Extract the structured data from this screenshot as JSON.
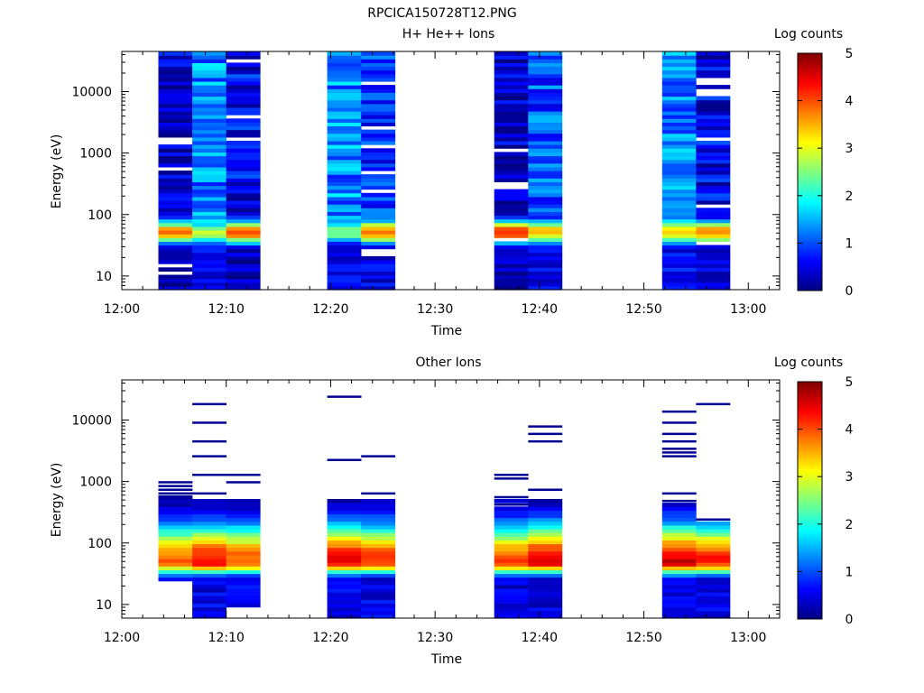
{
  "figure_title": "RPCICA150728T12.PNG",
  "chart_data": [
    {
      "type": "heatmap",
      "title": "H+ He++ Ions",
      "xlabel": "Time",
      "ylabel": "Energy (eV)",
      "x_range": [
        "12:00",
        "13:03"
      ],
      "x_ticks": [
        "12:00",
        "12:10",
        "12:20",
        "12:30",
        "12:40",
        "12:50",
        "13:00"
      ],
      "y_scale": "log",
      "y_range": [
        6,
        45000
      ],
      "y_ticks": [
        "10",
        "100",
        "1000",
        "10000"
      ],
      "colorbar": {
        "label": "Log counts",
        "range": [
          0,
          5
        ],
        "ticks": [
          "0",
          "1",
          "2",
          "3",
          "4",
          "5"
        ]
      },
      "columns": [
        {
          "start": "12:03:30",
          "end": "12:06:45",
          "band": [
            3.8,
            1.2
          ],
          "top_level": 0.35,
          "bottom_level": 0.2,
          "gaps": [
            1600,
            1450,
            520,
            14,
            11
          ],
          "seed": 11
        },
        {
          "start": "12:06:45",
          "end": "12:10:00",
          "band": [
            2.8,
            1.0
          ],
          "top_level": 1.3,
          "bottom_level": 0.5,
          "gaps": [],
          "seed": 12
        },
        {
          "start": "12:10:00",
          "end": "12:13:15",
          "band": [
            4.0,
            1.1
          ],
          "top_level": 0.6,
          "bottom_level": 0.3,
          "gaps": [
            30000,
            3800,
            1600
          ],
          "seed": 13
        },
        {
          "start": "12:19:40",
          "end": "12:22:55",
          "band": [
            2.5,
            1.3
          ],
          "top_level": 1.3,
          "bottom_level": 0.5,
          "gaps": [],
          "seed": 14
        },
        {
          "start": "12:22:55",
          "end": "12:26:10",
          "band": [
            4.0,
            1.0
          ],
          "top_level": 0.8,
          "bottom_level": 0.5,
          "gaps": [
            14000,
            2600,
            1350,
            500,
            230,
            27,
            23
          ],
          "seed": 15
        },
        {
          "start": "12:35:40",
          "end": "12:38:55",
          "band": [
            4.3,
            1.1
          ],
          "top_level": 0.3,
          "bottom_level": 0.2,
          "gaps": [
            1100,
            340,
            290,
            40
          ],
          "seed": 16
        },
        {
          "start": "12:38:55",
          "end": "12:42:10",
          "band": [
            3.5,
            1.0
          ],
          "top_level": 1.0,
          "bottom_level": 0.5,
          "gaps": [],
          "seed": 17
        },
        {
          "start": "12:51:45",
          "end": "12:55:00",
          "band": [
            3.5,
            1.2
          ],
          "top_level": 1.3,
          "bottom_level": 0.6,
          "gaps": [],
          "seed": 18
        },
        {
          "start": "12:55:00",
          "end": "12:58:15",
          "band": [
            3.8,
            1.0
          ],
          "top_level": 0.5,
          "bottom_level": 0.4,
          "gaps": [
            16000,
            13000,
            10000,
            8500,
            1600,
            130,
            36
          ],
          "seed": 19
        }
      ]
    },
    {
      "type": "heatmap",
      "title": "Other Ions",
      "xlabel": "Time",
      "ylabel": "Energy (eV)",
      "x_range": [
        "12:00",
        "13:03"
      ],
      "x_ticks": [
        "12:00",
        "12:10",
        "12:20",
        "12:30",
        "12:40",
        "12:50",
        "13:00"
      ],
      "y_scale": "log",
      "y_range": [
        6,
        45000
      ],
      "y_ticks": [
        "10",
        "100",
        "1000",
        "10000"
      ],
      "colorbar": {
        "label": "Log counts",
        "range": [
          0,
          5
        ],
        "ticks": [
          "0",
          "1",
          "2",
          "3",
          "4",
          "5"
        ]
      },
      "columns": [
        {
          "start": "12:03:30",
          "end": "12:06:45",
          "emin": 25,
          "emax": 560,
          "peak": 3.9,
          "lines": [
            1000,
            850,
            720,
            620
          ]
        },
        {
          "start": "12:06:45",
          "end": "12:10:00",
          "emin": 6,
          "emax": 520,
          "peak": 4.4,
          "lines": [
            17000,
            9500,
            4300,
            2500,
            1200,
            600
          ]
        },
        {
          "start": "12:10:00",
          "end": "12:13:15",
          "emin": 9,
          "emax": 540,
          "peak": 4.0,
          "lines": [
            1300,
            1000
          ]
        },
        {
          "start": "12:19:40",
          "end": "12:22:55",
          "emin": 6,
          "emax": 540,
          "peak": 4.5,
          "lines": [
            24500,
            2400
          ]
        },
        {
          "start": "12:22:55",
          "end": "12:26:10",
          "emin": 6,
          "emax": 500,
          "peak": 4.2,
          "lines": [
            2600,
            610
          ]
        },
        {
          "start": "12:35:40",
          "end": "12:38:55",
          "emin": 6,
          "emax": 500,
          "peak": 4.1,
          "lines": [
            1350,
            1150,
            520,
            430
          ]
        },
        {
          "start": "12:38:55",
          "end": "12:42:10",
          "emin": 6,
          "emax": 500,
          "peak": 4.6,
          "lines": [
            7500,
            5800,
            4400,
            700
          ]
        },
        {
          "start": "12:51:45",
          "end": "12:55:00",
          "emin": 6,
          "emax": 500,
          "peak": 4.6,
          "lines": [
            14000,
            9500,
            5700,
            4500,
            3600,
            3100,
            2600,
            600,
            480
          ]
        },
        {
          "start": "12:55:00",
          "end": "12:58:15",
          "emin": 6,
          "emax": 250,
          "peak": 4.3,
          "lines": [
            18000,
            240
          ]
        }
      ]
    }
  ]
}
